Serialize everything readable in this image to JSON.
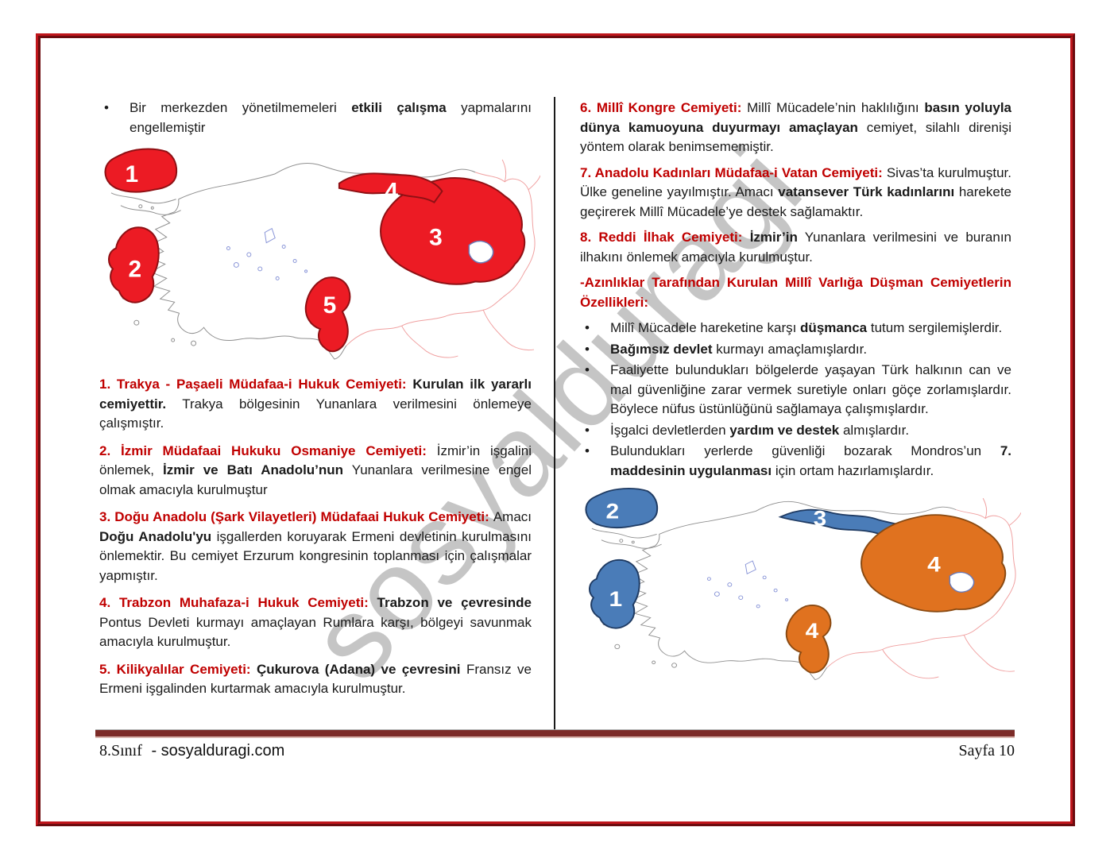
{
  "page": {
    "watermark": "sosyalduragi",
    "bullet_glyph": "•",
    "footer": {
      "left_grade": "8.Sınıf",
      "left_site": "- sosyalduragi.com",
      "right": "Sayfa 10"
    }
  },
  "left_column": {
    "top_bullet": {
      "segments": [
        {
          "t": "Bir merkezden yönetilmemeleri ",
          "s": "n"
        },
        {
          "t": "etkili çalışma",
          "s": "b"
        },
        {
          "t": " yapmalarını engellemiştir",
          "s": "n"
        }
      ]
    },
    "map1": {
      "region_fill": "#ec1b24",
      "region_stroke": "#8f1014",
      "label_color": "#ffffff",
      "labels": {
        "thrace": "1",
        "west": "2",
        "east": "3",
        "strip": "4",
        "south": "5"
      }
    },
    "paragraphs": [
      {
        "segments": [
          {
            "t": "1. Trakya - Paşaeli Müdafaa-i Hukuk Cemiyeti: ",
            "s": "rb"
          },
          {
            "t": "Kurulan ilk yararlı cemiyettir.",
            "s": "b"
          },
          {
            "t": " Trakya bölgesinin Yunanlara verilmesini önlemeye çalışmıştır.",
            "s": "n"
          }
        ]
      },
      {
        "segments": [
          {
            "t": "2. İzmir Müdafaai Hukuku Osmaniye Cemiyeti: ",
            "s": "rb"
          },
          {
            "t": "İzmir’in işgalini önlemek, ",
            "s": "n"
          },
          {
            "t": "İzmir ve Batı Anadolu’nun",
            "s": "b"
          },
          {
            "t": " Yunanlara verilmesine engel olmak amacıyla kurulmuştur",
            "s": "n"
          }
        ]
      },
      {
        "segments": [
          {
            "t": "3. Doğu Anadolu (Şark Vilayetleri) Müdafaai Hukuk Cemiyeti: ",
            "s": "rb"
          },
          {
            "t": "Amacı ",
            "s": "n"
          },
          {
            "t": "Doğu Anadolu'yu",
            "s": "b"
          },
          {
            "t": " işgallerden koruyarak Ermeni devletinin kurulmasını önlemektir. Bu cemiyet Erzurum kongresinin toplanması için çalışmalar yapmıştır.",
            "s": "n"
          }
        ]
      },
      {
        "segments": [
          {
            "t": "4. Trabzon Muhafaza-i Hukuk Cemiyeti: ",
            "s": "rb"
          },
          {
            "t": "Trabzon ve çevresinde",
            "s": "b"
          },
          {
            "t": " Pontus Devleti kurmayı amaçlayan Rumlara karşı, bölgeyi savunmak amacıyla kurulmuştur.",
            "s": "n"
          }
        ]
      },
      {
        "segments": [
          {
            "t": "5. Kilikyalılar Cemiyeti: ",
            "s": "rb"
          },
          {
            "t": "Çukurova (Adana) ve çevresini",
            "s": "b"
          },
          {
            "t": " Fransız ve Ermeni işgalinden kurtarmak amacıyla kurulmuştur.",
            "s": "n"
          }
        ]
      }
    ]
  },
  "right_column": {
    "paragraphs": [
      {
        "segments": [
          {
            "t": "6. Millî Kongre Cemiyeti: ",
            "s": "rb"
          },
          {
            "t": "Millî Mücadele’nin haklılığını ",
            "s": "n"
          },
          {
            "t": "basın yoluyla dünya kamuoyuna duyurmayı amaçlayan",
            "s": "b"
          },
          {
            "t": " cemiyet, silahlı direnişi yöntem olarak benimsememiştir.",
            "s": "n"
          }
        ]
      },
      {
        "segments": [
          {
            "t": "7. Anadolu Kadınları Müdafaa-i Vatan Cemiyeti: ",
            "s": "rb"
          },
          {
            "t": "Sivas’ta kurulmuştur. Ülke geneline yayılmıştır. Amacı ",
            "s": "n"
          },
          {
            "t": "vatansever Türk kadınlarını",
            "s": "b"
          },
          {
            "t": " harekete geçirerek Millî Mücadele’ye destek sağlamaktır.",
            "s": "n"
          }
        ]
      },
      {
        "segments": [
          {
            "t": "8. Reddi İlhak Cemiyeti: ",
            "s": "rb"
          },
          {
            "t": "İzmir’in",
            "s": "b"
          },
          {
            "t": " Yunanlara verilmesini ve buranın ilhakını önlemek amacıyla kurulmuştur.",
            "s": "n"
          }
        ]
      }
    ],
    "section_header": {
      "segments": [
        {
          "t": "-Azınlıklar Tarafından Kurulan Millî Varlığa Düşman Cemiyetlerin Özellikleri:",
          "s": "rb"
        }
      ]
    },
    "bullets": [
      {
        "segments": [
          {
            "t": "Millî Mücadele hareketine karşı ",
            "s": "n"
          },
          {
            "t": "düşmanca",
            "s": "b"
          },
          {
            "t": " tutum sergilemişlerdir.",
            "s": "n"
          }
        ]
      },
      {
        "segments": [
          {
            "t": "Bağımsız devlet",
            "s": "b"
          },
          {
            "t": " kurmayı amaçlamışlardır.",
            "s": "n"
          }
        ]
      },
      {
        "segments": [
          {
            "t": "Faaliyette bulundukları bölgelerde yaşayan Türk halkının can ve mal güvenliğine zarar vermek suretiyle onları göçe zorlamışlardır. Böylece nüfus üstünlüğünü sağlamaya çalışmışlardır.",
            "s": "n"
          }
        ]
      },
      {
        "segments": [
          {
            "t": "İşgalci devletlerden ",
            "s": "n"
          },
          {
            "t": "yardım ve destek",
            "s": "b"
          },
          {
            "t": " almışlardır.",
            "s": "n"
          }
        ]
      },
      {
        "segments": [
          {
            "t": "Bulundukları yerlerde güvenliği bozarak Mondros’un ",
            "s": "n"
          },
          {
            "t": "7. maddesinin uygulanması",
            "s": "b"
          },
          {
            "t": " için ortam hazırlamışlardır.",
            "s": "n"
          }
        ]
      }
    ],
    "map2": {
      "blue_fill": "#4a7cb8",
      "blue_stroke": "#1f3b63",
      "orange_fill": "#e0721f",
      "orange_stroke": "#8a4a12",
      "label_color": "#ffffff",
      "labels": {
        "west": "1",
        "thrace": "2",
        "strip": "3",
        "east": "4",
        "south": "4"
      }
    }
  }
}
